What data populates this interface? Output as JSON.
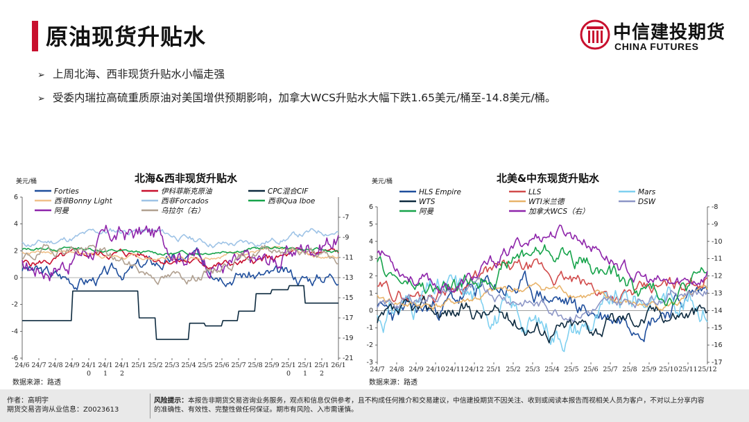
{
  "page": {
    "title": "原油现货升贴水",
    "logo": {
      "cn": "中信建投期货",
      "en": "CHINA FUTURES"
    },
    "bullets": [
      "上周北海、西非现货升贴水小幅走强",
      "受委内瑞拉高硫重质原油对美国增供预期影响，加拿大WCS升贴水大幅下跌1.65美元/桶至-14.8美元/桶。"
    ],
    "footer": {
      "author_label": "作者：高明宇",
      "license": "期货交易咨询从业信息：Z0023613",
      "risk_label": "风险提示：",
      "risk_line1": "本报告非期货交易咨询业务服务，观点和信息仅供参考，且不构成任何推介和交易建议，中信建投期货不因关注、收到或阅读本报告而视相关人员为客户，不对以上分享内容",
      "risk_line2": "的准确性、有效性、完整性做任何保证。期市有风险、入市需谨慎。"
    }
  },
  "colors": {
    "accent": "#c8102e",
    "footer_bg": "#e9e9e9"
  },
  "chart_data": [
    {
      "type": "line",
      "title": "北海&西非现货升贴水",
      "unit_label": "美元/桶",
      "source": "数据来源：路透",
      "x_ticks": [
        "24/6",
        "24/7",
        "24/8",
        "24/9",
        "24/1\n0",
        "24/1\n1",
        "24/1\n2",
        "25/1",
        "25/2",
        "25/3",
        "25/4",
        "25/5",
        "25/6",
        "25/7",
        "25/8",
        "25/9",
        "25/1\n0",
        "25/1\n1",
        "25/1\n2",
        "26/1"
      ],
      "y_left": {
        "min": -6,
        "max": 6,
        "ticks": [
          "6",
          "4",
          "2",
          "0",
          "-2",
          "-4",
          "-6"
        ]
      },
      "y_right": {
        "min": -21,
        "max": -5,
        "ticks": [
          "-7",
          "-9",
          "-11",
          "-13",
          "-15",
          "-17",
          "-19",
          "-21"
        ]
      },
      "legend": [
        [
          "Forties",
          "伊科菲斯克原油",
          "CPC混合CIF"
        ],
        [
          "西非Bonny Light",
          "西非Forcados",
          "西非Qua Iboe"
        ],
        [
          "阿曼",
          "乌拉尔（右）"
        ]
      ],
      "series": [
        {
          "name": "Forties",
          "color": "#1f4e9c",
          "axis": "left",
          "base": 0.6,
          "amp": 0.7,
          "noise": 0.6,
          "seed": 3
        },
        {
          "name": "伊科菲斯克原油",
          "color": "#c8102e",
          "axis": "left",
          "base": 1.4,
          "amp": 0.4,
          "noise": 0.35,
          "seed": 5
        },
        {
          "name": "CPC混合CIF",
          "color": "#0d2a3f",
          "axis": "left",
          "step": true,
          "values": [
            -3.2,
            -3.2,
            -3.2,
            -1.0,
            -1.0,
            -1.0,
            -1.0,
            -3.0,
            -4.6,
            -4.6,
            -3.4,
            -3.6,
            -3.2,
            -2.5,
            -1.2,
            -0.9,
            -0.6,
            -1.9,
            -1.9,
            -1.9
          ]
        },
        {
          "name": "西非Bonny Light",
          "color": "#f0c08a",
          "axis": "left",
          "base": 1.7,
          "amp": 0.3,
          "noise": 0.2,
          "seed": 7
        },
        {
          "name": "西非Forcados",
          "color": "#9ec3e6",
          "axis": "left",
          "base": 3.0,
          "amp": 0.5,
          "noise": 0.3,
          "seed": 11
        },
        {
          "name": "西非Qua Iboe",
          "color": "#16a34a",
          "axis": "left",
          "base": 2.0,
          "amp": 0.2,
          "noise": 0.15,
          "seed": 13
        },
        {
          "name": "阿曼",
          "color": "#8e24aa",
          "axis": "left",
          "base": 2.0,
          "amp": 1.2,
          "noise": 0.9,
          "seed": 17
        },
        {
          "name": "乌拉尔（右）",
          "color": "#b0a090",
          "axis": "right",
          "base": -11.5,
          "amp": 1.5,
          "noise": 0.6,
          "seed": 19
        }
      ]
    },
    {
      "type": "line",
      "title": "北美&中东现货升贴水",
      "unit_label": "美元/桶",
      "source": "数据来源：路透",
      "x_ticks": [
        "24/7",
        "24/8",
        "24/9",
        "24/10",
        "24/11",
        "24/12",
        "25/1",
        "25/2",
        "25/3",
        "25/4",
        "25/5",
        "25/6",
        "25/7",
        "25/8",
        "25/9",
        "25/10",
        "25/11",
        "25/12"
      ],
      "y_left": {
        "min": -3,
        "max": 6,
        "ticks": [
          "6",
          "5",
          "4",
          "3",
          "2",
          "1",
          "0",
          "-1",
          "-2",
          "-3"
        ]
      },
      "y_right": {
        "min": -17,
        "max": -8,
        "ticks": [
          "-8",
          "-9",
          "-10",
          "-11",
          "-12",
          "-13",
          "-14",
          "-15",
          "-16",
          "-17"
        ]
      },
      "legend": [
        [
          "HLS Empire",
          "LLS",
          "Mars"
        ],
        [
          "WTS",
          "WTI米兰德",
          "DSW"
        ],
        [
          "阿曼",
          "加拿大WCS（右）"
        ]
      ],
      "series": [
        {
          "name": "HLS Empire",
          "color": "#1f4e9c",
          "axis": "left",
          "base": 0.5,
          "amp": 0.8,
          "noise": 0.7,
          "seed": 23
        },
        {
          "name": "LLS",
          "color": "#d14b4b",
          "axis": "left",
          "base": 1.6,
          "amp": 0.7,
          "noise": 0.5,
          "seed": 29
        },
        {
          "name": "Mars",
          "color": "#7fd0f0",
          "axis": "left",
          "base": 0.0,
          "amp": 1.0,
          "noise": 0.9,
          "seed": 31
        },
        {
          "name": "WTS",
          "color": "#0d2a3f",
          "axis": "left",
          "base": -0.5,
          "amp": 0.5,
          "noise": 0.6,
          "seed": 37
        },
        {
          "name": "WTI米兰德",
          "color": "#e8b36a",
          "axis": "left",
          "base": 0.8,
          "amp": 0.5,
          "noise": 0.3,
          "seed": 41
        },
        {
          "name": "DSW",
          "color": "#8c96c6",
          "axis": "left",
          "base": 0.6,
          "amp": 0.6,
          "noise": 0.4,
          "seed": 43
        },
        {
          "name": "阿曼",
          "color": "#16a34a",
          "axis": "left",
          "base": 2.3,
          "amp": 1.2,
          "noise": 0.6,
          "seed": 47
        },
        {
          "name": "加拿大WCS（右）",
          "color": "#8e24aa",
          "axis": "right",
          "base": -11.0,
          "amp": 1.6,
          "noise": 0.5,
          "seed": 53
        }
      ]
    }
  ]
}
